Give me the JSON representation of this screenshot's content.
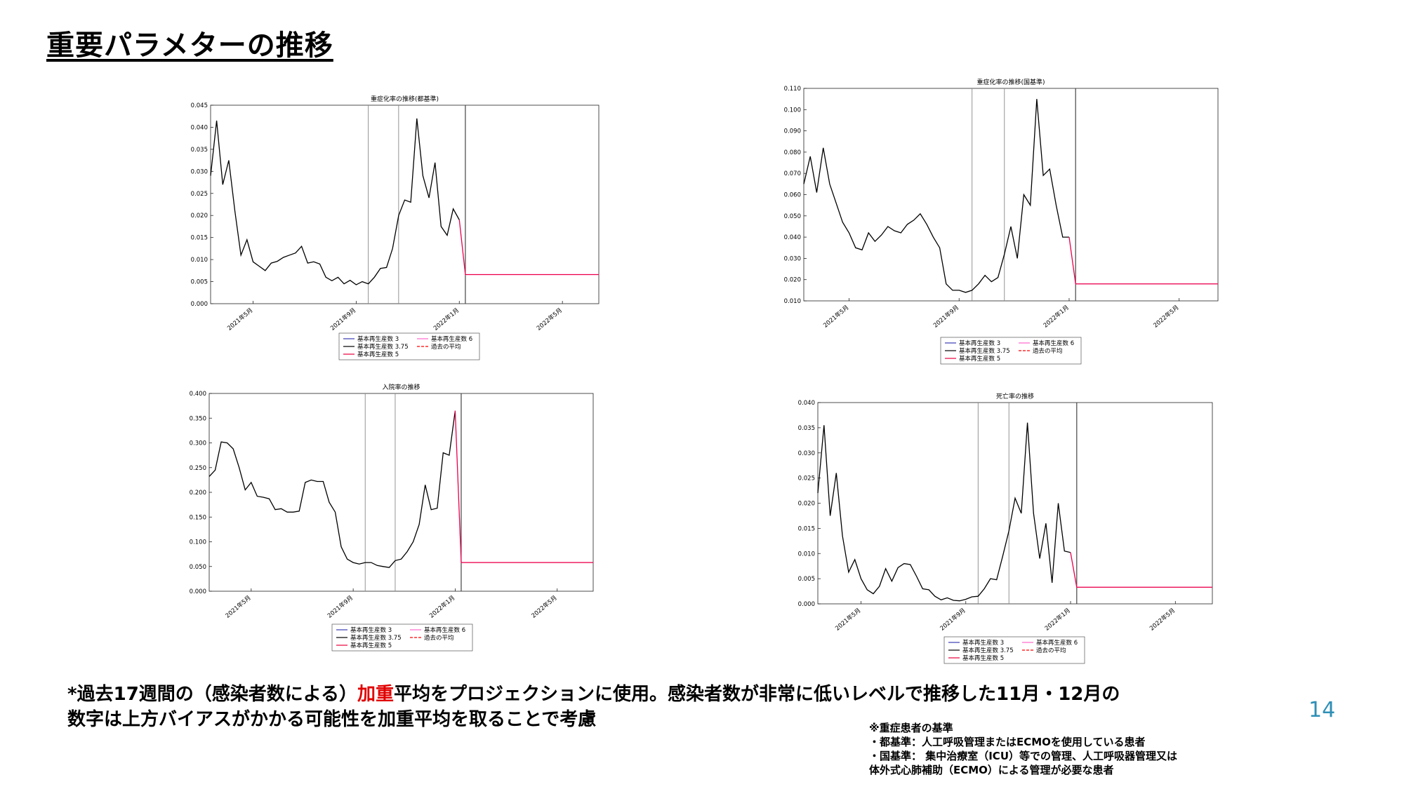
{
  "page": {
    "title": "重要パラメターの推移",
    "page_number": "14"
  },
  "footnote": {
    "part1": "*過去17週間の（感染者数による）",
    "highlight": "加重",
    "part2": "平均をプロジェクションに使用。感染者数が非常に低いレベルで推移した11月・12月の",
    "line2": "数字は上方バイアスがかかる可能性を加重平均を取ることで考慮"
  },
  "criteria": {
    "heading": "※重症患者の基準",
    "line1": "・都基準：人工呼吸管理またはECMOを使用している患者",
    "line2": "・国基準： 集中治療室（ICU）等での管理、人工呼吸器管理又は",
    "line3": "体外式心肺補助（ECMO）による管理が必要な患者"
  },
  "colors": {
    "history": "#000000",
    "projection": "#e8003c",
    "r3": "#3b3bb3",
    "r6": "#ff66cc",
    "mean": "#ff0000",
    "vline": "#888888",
    "accent": "#2e8fb5"
  },
  "chart_data": [
    {
      "id": "tokyo-severe",
      "type": "line",
      "title": "重症化率の推移(都基準)",
      "xlabel": "",
      "ylabel": "",
      "x_ticks": [
        "2021年5月",
        "2021年9月",
        "2022年1月",
        "2022年5月"
      ],
      "y_ticks": [
        "0.000",
        "0.005",
        "0.010",
        "0.015",
        "0.020",
        "0.025",
        "0.030",
        "0.035",
        "0.040",
        "0.045"
      ],
      "ylim": [
        0,
        0.045
      ],
      "grid": false,
      "legend": [
        "基本再生産数 3",
        "基本再生産数 3.75",
        "基本再生産数 5",
        "基本再生産数 6",
        "過去の平均"
      ],
      "history": [
        0.029,
        0.0415,
        0.027,
        0.0325,
        0.021,
        0.011,
        0.0145,
        0.0095,
        0.0085,
        0.0075,
        0.0092,
        0.0096,
        0.0105,
        0.011,
        0.0115,
        0.013,
        0.0092,
        0.0095,
        0.009,
        0.006,
        0.0052,
        0.006,
        0.0045,
        0.0053,
        0.0043,
        0.005,
        0.0045,
        0.006,
        0.008,
        0.0082,
        0.0125,
        0.02,
        0.0235,
        0.023,
        0.042,
        0.029,
        0.024,
        0.032,
        0.0175,
        0.0155,
        0.0215,
        0.019
      ],
      "projection_drop_to": 0.0066,
      "projection_length": 23,
      "vlines": [
        27,
        32,
        43
      ]
    },
    {
      "id": "national-severe",
      "type": "line",
      "title": "重症化率の推移(国基準)",
      "xlabel": "",
      "ylabel": "",
      "x_ticks": [
        "2021年5月",
        "2021年9月",
        "2022年1月",
        "2022年5月"
      ],
      "y_ticks": [
        "0.010",
        "0.020",
        "0.030",
        "0.040",
        "0.050",
        "0.060",
        "0.070",
        "0.080",
        "0.090",
        "0.100",
        "0.110"
      ],
      "ylim": [
        0.01,
        0.11
      ],
      "grid": false,
      "legend": [
        "基本再生産数 3",
        "基本再生産数 3.75",
        "基本再生産数 5",
        "基本再生産数 6",
        "過去の平均"
      ],
      "history": [
        0.065,
        0.078,
        0.061,
        0.082,
        0.065,
        0.056,
        0.047,
        0.042,
        0.035,
        0.034,
        0.042,
        0.038,
        0.041,
        0.045,
        0.043,
        0.042,
        0.046,
        0.048,
        0.051,
        0.046,
        0.04,
        0.035,
        0.018,
        0.015,
        0.015,
        0.014,
        0.015,
        0.018,
        0.022,
        0.019,
        0.021,
        0.032,
        0.045,
        0.03,
        0.06,
        0.055,
        0.105,
        0.069,
        0.072,
        0.055,
        0.04,
        0.04
      ],
      "projection_drop_to": 0.018,
      "projection_length": 23,
      "vlines": [
        27,
        32,
        43
      ]
    },
    {
      "id": "hospitalization",
      "type": "line",
      "title": "入院率の推移",
      "xlabel": "",
      "ylabel": "",
      "x_ticks": [
        "2021年5月",
        "2021年9月",
        "2022年1月",
        "2022年5月"
      ],
      "y_ticks": [
        "0.000",
        "0.050",
        "0.100",
        "0.150",
        "0.200",
        "0.250",
        "0.300",
        "0.350",
        "0.400"
      ],
      "ylim": [
        0,
        0.4
      ],
      "grid": false,
      "legend": [
        "基本再生産数 3",
        "基本再生産数 3.75",
        "基本再生産数 5",
        "基本再生産数 6",
        "過去の平均"
      ],
      "history": [
        0.232,
        0.245,
        0.302,
        0.3,
        0.288,
        0.25,
        0.205,
        0.22,
        0.192,
        0.19,
        0.187,
        0.165,
        0.167,
        0.16,
        0.16,
        0.162,
        0.22,
        0.225,
        0.222,
        0.222,
        0.18,
        0.16,
        0.09,
        0.065,
        0.058,
        0.055,
        0.058,
        0.058,
        0.052,
        0.05,
        0.048,
        0.062,
        0.065,
        0.08,
        0.1,
        0.135,
        0.215,
        0.165,
        0.168,
        0.28,
        0.275,
        0.365
      ],
      "projection_drop_to": 0.058,
      "projection_length": 23,
      "vlines": [
        27,
        32,
        43
      ]
    },
    {
      "id": "mortality",
      "type": "line",
      "title": "死亡率の推移",
      "xlabel": "",
      "ylabel": "",
      "x_ticks": [
        "2021年5月",
        "2021年9月",
        "2022年1月",
        "2022年5月"
      ],
      "y_ticks": [
        "0.000",
        "0.005",
        "0.010",
        "0.015",
        "0.020",
        "0.025",
        "0.030",
        "0.035",
        "0.040"
      ],
      "ylim": [
        0,
        0.04
      ],
      "grid": false,
      "legend": [
        "基本再生産数 3",
        "基本再生産数 3.75",
        "基本再生産数 5",
        "基本再生産数 6",
        "過去の平均"
      ],
      "history": [
        0.022,
        0.0355,
        0.0175,
        0.026,
        0.0135,
        0.0063,
        0.0088,
        0.005,
        0.0028,
        0.002,
        0.0035,
        0.007,
        0.0045,
        0.0072,
        0.008,
        0.0078,
        0.0055,
        0.003,
        0.0028,
        0.0015,
        0.0008,
        0.0012,
        0.0007,
        0.0006,
        0.0009,
        0.0014,
        0.0015,
        0.003,
        0.005,
        0.0048,
        0.0095,
        0.0145,
        0.021,
        0.018,
        0.036,
        0.018,
        0.009,
        0.016,
        0.0042,
        0.02,
        0.0105,
        0.0102
      ],
      "projection_drop_to": 0.0033,
      "projection_length": 23,
      "vlines": [
        27,
        32,
        43
      ]
    }
  ]
}
